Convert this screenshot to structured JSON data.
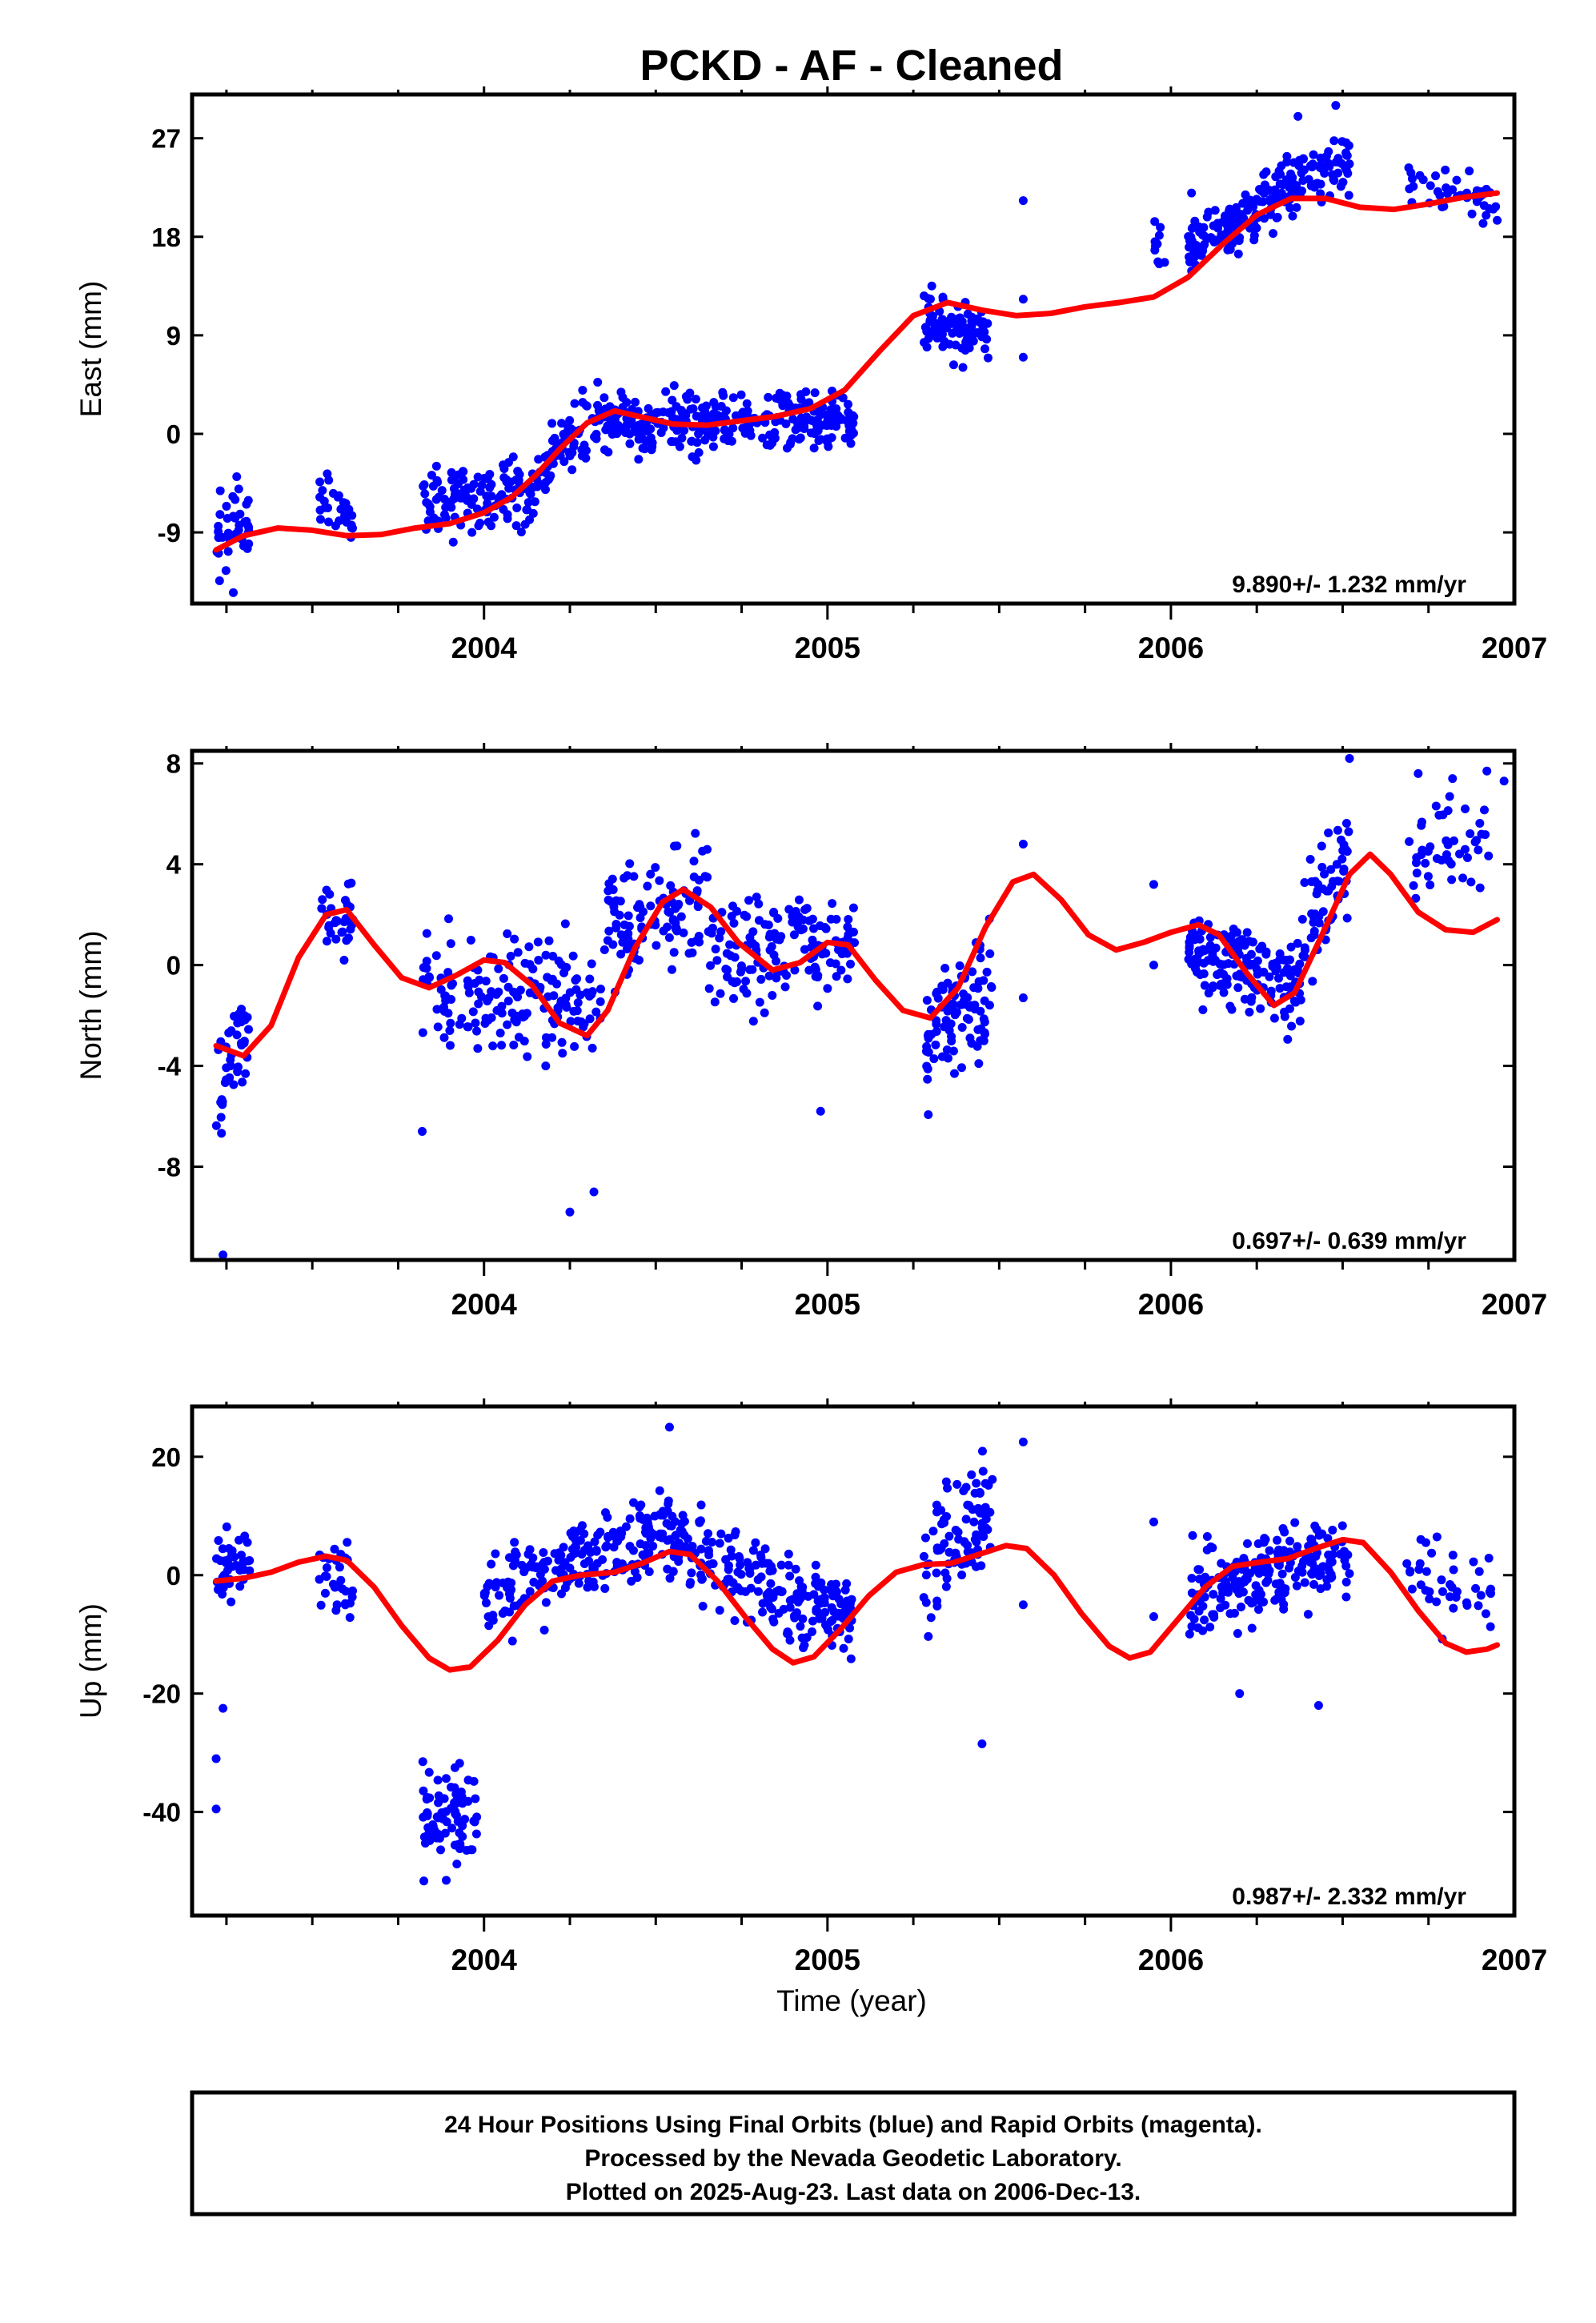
{
  "title": "PCKD  - AF - Cleaned",
  "xlabel": "Time (year)",
  "footer": {
    "line1": "24 Hour Positions Using Final Orbits (blue) and Rapid Orbits (magenta).",
    "line2": "Processed by the Nevada Geodetic Laboratory.",
    "line3": "Plotted on 2025-Aug-23. Last data on 2006-Dec-13."
  },
  "colors": {
    "points": "#0000ff",
    "fit": "#ff0000",
    "frame": "#000000"
  },
  "chart_data": [
    {
      "type": "scatter",
      "name": "east",
      "ylabel": "East (mm)",
      "rate": "9.890+/- 1.232 mm/yr",
      "xlim": [
        2003.15,
        2007.0
      ],
      "ylim": [
        -15.5,
        31
      ],
      "xticks": [
        2004,
        2005,
        2006,
        2007
      ],
      "yticks": [
        -9,
        0,
        9,
        18,
        27
      ],
      "fit": [
        [
          2003.22,
          -10.6
        ],
        [
          2003.3,
          -9.3
        ],
        [
          2003.4,
          -8.6
        ],
        [
          2003.5,
          -8.8
        ],
        [
          2003.6,
          -9.3
        ],
        [
          2003.7,
          -9.2
        ],
        [
          2003.8,
          -8.6
        ],
        [
          2003.9,
          -8.2
        ],
        [
          2004.0,
          -7.2
        ],
        [
          2004.08,
          -5.8
        ],
        [
          2004.15,
          -3.8
        ],
        [
          2004.22,
          -1.4
        ],
        [
          2004.3,
          1.0
        ],
        [
          2004.38,
          2.1
        ],
        [
          2004.45,
          1.6
        ],
        [
          2004.55,
          0.9
        ],
        [
          2004.65,
          0.8
        ],
        [
          2004.75,
          1.2
        ],
        [
          2004.85,
          1.6
        ],
        [
          2004.95,
          2.3
        ],
        [
          2005.05,
          4.0
        ],
        [
          2005.15,
          7.5
        ],
        [
          2005.25,
          10.8
        ],
        [
          2005.35,
          12.0
        ],
        [
          2005.45,
          11.3
        ],
        [
          2005.55,
          10.8
        ],
        [
          2005.65,
          11.0
        ],
        [
          2005.75,
          11.6
        ],
        [
          2005.85,
          12.0
        ],
        [
          2005.95,
          12.5
        ],
        [
          2006.05,
          14.3
        ],
        [
          2006.15,
          17.3
        ],
        [
          2006.25,
          20.0
        ],
        [
          2006.35,
          21.5
        ],
        [
          2006.45,
          21.5
        ],
        [
          2006.55,
          20.7
        ],
        [
          2006.65,
          20.5
        ],
        [
          2006.75,
          21.0
        ],
        [
          2006.85,
          21.6
        ],
        [
          2006.95,
          22.0
        ]
      ],
      "points": [
        {
          "x0": 2003.22,
          "x1": 2003.32,
          "n": 40,
          "base": [
            -9.6,
            -8.2
          ],
          "spread": 2.8
        },
        {
          "x0": 2003.52,
          "x1": 2003.62,
          "n": 28,
          "base": [
            -6.0,
            -7.8
          ],
          "spread": 1.8
        },
        {
          "x0": 2003.82,
          "x1": 2004.15,
          "n": 130,
          "base": [
            -6.2,
            -5.2
          ],
          "spread": 2.3
        },
        {
          "x0": 2004.15,
          "x1": 2004.35,
          "n": 70,
          "base": [
            -3.5,
            1.5
          ],
          "spread": 2.0
        },
        {
          "x0": 2004.35,
          "x1": 2005.08,
          "n": 300,
          "base": [
            1.0,
            1.0
          ],
          "spread": 1.9
        },
        {
          "x0": 2005.28,
          "x1": 2005.48,
          "n": 95,
          "base": [
            10.0,
            9.0
          ],
          "spread": 2.0
        },
        {
          "x0": 2005.95,
          "x1": 2006.0,
          "n": 10,
          "base": [
            16.5,
            16.5
          ],
          "spread": 2.2
        },
        {
          "x0": 2006.05,
          "x1": 2006.25,
          "n": 95,
          "base": [
            16.5,
            20.0
          ],
          "spread": 1.6
        },
        {
          "x0": 2006.25,
          "x1": 2006.52,
          "n": 110,
          "base": [
            21.0,
            24.5
          ],
          "spread": 1.9
        },
        {
          "x0": 2006.68,
          "x1": 2006.95,
          "n": 40,
          "base": [
            23.0,
            21.5
          ],
          "spread": 1.5
        }
      ],
      "extra_points": [
        [
          2003.27,
          -14.5
        ],
        [
          2005.57,
          21.3
        ],
        [
          2005.57,
          7.0
        ],
        [
          2005.57,
          12.3
        ],
        [
          2006.06,
          22.0
        ],
        [
          2006.48,
          30.0
        ],
        [
          2006.37,
          29.0
        ],
        [
          2006.95,
          19.5
        ]
      ]
    },
    {
      "type": "scatter",
      "name": "north",
      "ylabel": "North (mm)",
      "rate": "0.697+/- 0.639 mm/yr",
      "xlim": [
        2003.15,
        2007.0
      ],
      "ylim": [
        -11.7,
        8.5
      ],
      "xticks": [
        2004,
        2005,
        2006,
        2007
      ],
      "yticks": [
        -8,
        -4,
        0,
        4,
        8
      ],
      "fit": [
        [
          2003.22,
          -3.2
        ],
        [
          2003.3,
          -3.6
        ],
        [
          2003.38,
          -2.4
        ],
        [
          2003.46,
          0.3
        ],
        [
          2003.54,
          2.0
        ],
        [
          2003.6,
          2.2
        ],
        [
          2003.68,
          0.8
        ],
        [
          2003.76,
          -0.5
        ],
        [
          2003.84,
          -0.9
        ],
        [
          2003.92,
          -0.4
        ],
        [
          2004.0,
          0.2
        ],
        [
          2004.06,
          0.1
        ],
        [
          2004.14,
          -0.8
        ],
        [
          2004.22,
          -2.3
        ],
        [
          2004.3,
          -2.8
        ],
        [
          2004.36,
          -1.8
        ],
        [
          2004.44,
          0.7
        ],
        [
          2004.52,
          2.5
        ],
        [
          2004.58,
          3.0
        ],
        [
          2004.66,
          2.3
        ],
        [
          2004.74,
          0.9
        ],
        [
          2004.84,
          -0.2
        ],
        [
          2004.92,
          0.1
        ],
        [
          2005.0,
          0.9
        ],
        [
          2005.06,
          0.8
        ],
        [
          2005.14,
          -0.6
        ],
        [
          2005.22,
          -1.8
        ],
        [
          2005.3,
          -2.1
        ],
        [
          2005.38,
          -0.9
        ],
        [
          2005.46,
          1.5
        ],
        [
          2005.54,
          3.3
        ],
        [
          2005.6,
          3.6
        ],
        [
          2005.68,
          2.6
        ],
        [
          2005.76,
          1.2
        ],
        [
          2005.84,
          0.6
        ],
        [
          2005.92,
          0.9
        ],
        [
          2006.0,
          1.3
        ],
        [
          2006.08,
          1.6
        ],
        [
          2006.14,
          1.2
        ],
        [
          2006.22,
          -0.3
        ],
        [
          2006.3,
          -1.6
        ],
        [
          2006.36,
          -1.1
        ],
        [
          2006.44,
          1.2
        ],
        [
          2006.52,
          3.6
        ],
        [
          2006.58,
          4.4
        ],
        [
          2006.64,
          3.6
        ],
        [
          2006.72,
          2.1
        ],
        [
          2006.8,
          1.4
        ],
        [
          2006.88,
          1.3
        ],
        [
          2006.95,
          1.8
        ]
      ],
      "points": [
        {
          "x0": 2003.22,
          "x1": 2003.32,
          "n": 40,
          "base": [
            -5.0,
            -2.0
          ],
          "spread": 1.6
        },
        {
          "x0": 2003.52,
          "x1": 2003.62,
          "n": 30,
          "base": [
            1.5,
            1.8
          ],
          "spread": 1.4
        },
        {
          "x0": 2003.82,
          "x1": 2004.35,
          "n": 170,
          "base": [
            -1.0,
            -1.5
          ],
          "spread": 1.7
        },
        {
          "x0": 2004.35,
          "x1": 2004.65,
          "n": 110,
          "base": [
            1.5,
            2.5
          ],
          "spread": 1.6
        },
        {
          "x0": 2004.65,
          "x1": 2005.08,
          "n": 150,
          "base": [
            0.5,
            1.0
          ],
          "spread": 1.5
        },
        {
          "x0": 2005.28,
          "x1": 2005.48,
          "n": 95,
          "base": [
            -3.0,
            -0.5
          ],
          "spread": 1.6
        },
        {
          "x0": 2006.05,
          "x1": 2006.38,
          "n": 160,
          "base": [
            0.5,
            -1.0
          ],
          "spread": 1.3
        },
        {
          "x0": 2006.38,
          "x1": 2006.52,
          "n": 60,
          "base": [
            1.0,
            4.5
          ],
          "spread": 1.6
        },
        {
          "x0": 2006.68,
          "x1": 2006.95,
          "n": 45,
          "base": [
            4.0,
            5.0
          ],
          "spread": 1.5
        }
      ],
      "extra_points": [
        [
          2003.24,
          -11.5
        ],
        [
          2004.25,
          -9.8
        ],
        [
          2004.32,
          -9.0
        ],
        [
          2003.82,
          -6.6
        ],
        [
          2004.98,
          -5.8
        ],
        [
          2005.57,
          4.8
        ],
        [
          2005.57,
          -1.3
        ],
        [
          2005.95,
          3.2
        ],
        [
          2005.95,
          0.0
        ],
        [
          2006.52,
          8.2
        ],
        [
          2006.72,
          7.6
        ],
        [
          2006.82,
          7.4
        ],
        [
          2006.92,
          7.7
        ],
        [
          2006.97,
          7.3
        ]
      ]
    },
    {
      "type": "scatter",
      "name": "up",
      "ylabel": "Up (mm)",
      "rate": "0.987+/- 2.332 mm/yr",
      "xlim": [
        2003.15,
        2007.0
      ],
      "ylim": [
        -57.5,
        28.5
      ],
      "xticks": [
        2004,
        2005,
        2006,
        2007
      ],
      "yticks": [
        -40,
        -20,
        0,
        20
      ],
      "fit": [
        [
          2003.22,
          -1.0
        ],
        [
          2003.3,
          -0.5
        ],
        [
          2003.38,
          0.5
        ],
        [
          2003.46,
          2.2
        ],
        [
          2003.54,
          3.2
        ],
        [
          2003.6,
          2.5
        ],
        [
          2003.68,
          -2.0
        ],
        [
          2003.76,
          -8.5
        ],
        [
          2003.84,
          -14.0
        ],
        [
          2003.9,
          -16.0
        ],
        [
          2003.96,
          -15.5
        ],
        [
          2004.04,
          -11.0
        ],
        [
          2004.12,
          -5.0
        ],
        [
          2004.2,
          -1.0
        ],
        [
          2004.28,
          0.0
        ],
        [
          2004.38,
          0.5
        ],
        [
          2004.46,
          2.0
        ],
        [
          2004.54,
          4.0
        ],
        [
          2004.6,
          3.5
        ],
        [
          2004.68,
          -1.0
        ],
        [
          2004.76,
          -7.0
        ],
        [
          2004.84,
          -12.5
        ],
        [
          2004.9,
          -14.8
        ],
        [
          2004.96,
          -13.8
        ],
        [
          2005.04,
          -9.0
        ],
        [
          2005.12,
          -3.5
        ],
        [
          2005.2,
          0.5
        ],
        [
          2005.28,
          1.8
        ],
        [
          2005.36,
          2.0
        ],
        [
          2005.44,
          3.5
        ],
        [
          2005.52,
          5.0
        ],
        [
          2005.58,
          4.5
        ],
        [
          2005.66,
          0.0
        ],
        [
          2005.74,
          -6.5
        ],
        [
          2005.82,
          -12.0
        ],
        [
          2005.88,
          -14.0
        ],
        [
          2005.94,
          -13.0
        ],
        [
          2006.02,
          -7.5
        ],
        [
          2006.1,
          -2.0
        ],
        [
          2006.18,
          1.5
        ],
        [
          2006.26,
          2.2
        ],
        [
          2006.34,
          2.8
        ],
        [
          2006.42,
          4.5
        ],
        [
          2006.5,
          6.0
        ],
        [
          2006.56,
          5.5
        ],
        [
          2006.64,
          0.5
        ],
        [
          2006.72,
          -6.0
        ],
        [
          2006.8,
          -11.5
        ],
        [
          2006.86,
          -13.0
        ],
        [
          2006.92,
          -12.5
        ],
        [
          2006.95,
          -11.8
        ]
      ],
      "points": [
        {
          "x0": 2003.22,
          "x1": 2003.32,
          "n": 40,
          "base": [
            0.0,
            2.0
          ],
          "spread": 5.0
        },
        {
          "x0": 2003.52,
          "x1": 2003.62,
          "n": 30,
          "base": [
            2.0,
            -2.0
          ],
          "spread": 4.5
        },
        {
          "x0": 2003.82,
          "x1": 2003.98,
          "n": 80,
          "base": [
            -42.0,
            -40.0
          ],
          "spread": 6.0
        },
        {
          "x0": 2004.0,
          "x1": 2004.55,
          "n": 210,
          "base": [
            -3.0,
            8.0
          ],
          "spread": 5.0
        },
        {
          "x0": 2004.55,
          "x1": 2005.08,
          "n": 220,
          "base": [
            5.0,
            -8.0
          ],
          "spread": 5.0
        },
        {
          "x0": 2005.28,
          "x1": 2005.48,
          "n": 90,
          "base": [
            2.0,
            12.0
          ],
          "spread": 7.0
        },
        {
          "x0": 2006.05,
          "x1": 2006.52,
          "n": 210,
          "base": [
            -3.0,
            4.0
          ],
          "spread": 5.0
        },
        {
          "x0": 2006.68,
          "x1": 2006.95,
          "n": 40,
          "base": [
            0.0,
            -5.0
          ],
          "spread": 6.0
        }
      ],
      "extra_points": [
        [
          2003.22,
          -31.0
        ],
        [
          2003.22,
          -39.5
        ],
        [
          2003.24,
          -22.5
        ],
        [
          2005.45,
          -28.5
        ],
        [
          2005.57,
          22.5
        ],
        [
          2005.57,
          -5.0
        ],
        [
          2006.2,
          -20.0
        ],
        [
          2006.43,
          -22.0
        ],
        [
          2004.54,
          25.0
        ],
        [
          2005.95,
          9.0
        ],
        [
          2005.95,
          -7.0
        ]
      ]
    }
  ]
}
